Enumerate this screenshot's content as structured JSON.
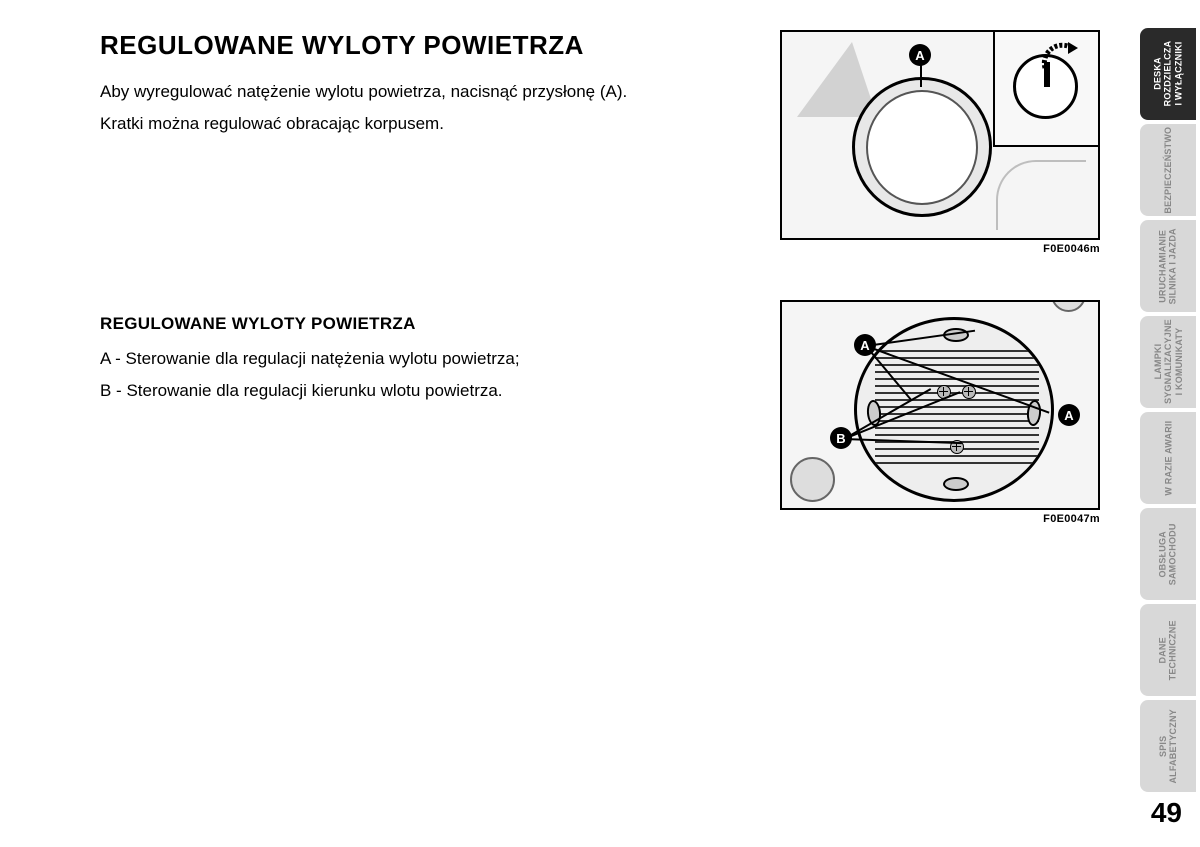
{
  "page": {
    "number": "49"
  },
  "section1": {
    "title": "REGULOWANE WYLOTY POWIETRZA",
    "para1": "Aby wyregulować natężenie wylotu powietrza, nacisnąć przysłonę (A).",
    "para2": "Kratki można regulować obracając korpusem."
  },
  "section2": {
    "title": "REGULOWANE WYLOTY POWIETRZA",
    "itemA": "A - Sterowanie dla regulacji natężenia wylotu powietrza;",
    "itemB": "B - Sterowanie dla regulacji kierunku wlotu powietrza."
  },
  "figures": {
    "fig1": {
      "caption": "F0E0046m",
      "labels": {
        "A": "A"
      }
    },
    "fig2": {
      "caption": "F0E0047m",
      "labels": {
        "A1": "A",
        "A2": "A",
        "B": "B"
      }
    }
  },
  "tabs": [
    {
      "line1": "DESKA",
      "line2": "ROZDZIELCZA",
      "line3": "I WYŁĄCZNIKI",
      "active": true
    },
    {
      "line1": "",
      "line2": "BEZPIECZEŃSTWO",
      "line3": "",
      "active": false
    },
    {
      "line1": "URUCHAMIANIE",
      "line2": "SILNIKA I JAZDA",
      "line3": "",
      "active": false
    },
    {
      "line1": "LAMPKI",
      "line2": "SYGNALIZACYJNE",
      "line3": "I KOMUNIKATY",
      "active": false
    },
    {
      "line1": "",
      "line2": "W RAZIE AWARII",
      "line3": "",
      "active": false
    },
    {
      "line1": "OBSŁUGA",
      "line2": "SAMOCHODU",
      "line3": "",
      "active": false
    },
    {
      "line1": "DANE",
      "line2": "TECHNICZNE",
      "line3": "",
      "active": false
    },
    {
      "line1": "SPIS",
      "line2": "ALFABETYCZNY",
      "line3": "",
      "active": false
    }
  ],
  "colors": {
    "tab_active_bg": "#2a2a2a",
    "tab_inactive_bg": "#d8d8d8",
    "tab_active_text": "#ffffff",
    "tab_inactive_text": "#888888",
    "figure_bg": "#f5f5f5",
    "text": "#000000"
  }
}
